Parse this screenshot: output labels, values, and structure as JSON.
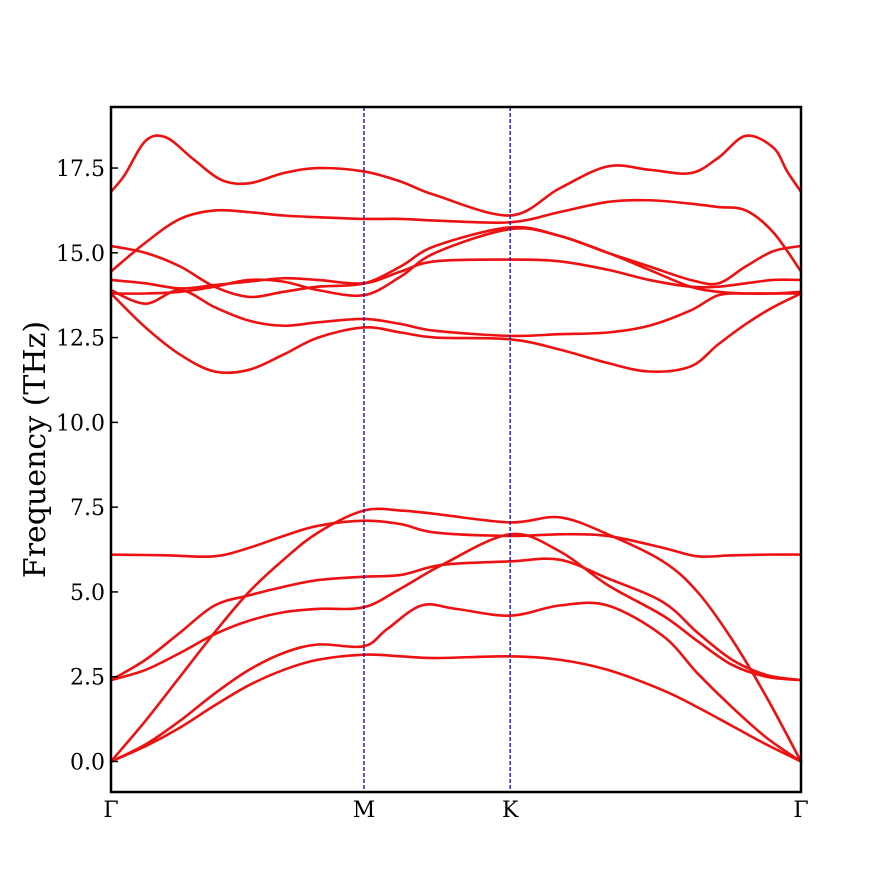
{
  "chart_data": {
    "type": "line",
    "title": "",
    "xlabel": "",
    "ylabel": "Frequency (THz)",
    "ylim": [
      -0.9,
      19.3
    ],
    "ytick_values": [
      0.0,
      2.5,
      5.0,
      7.5,
      10.0,
      12.5,
      15.0,
      17.5
    ],
    "ytick_labels": [
      "0.0",
      "2.5",
      "5.0",
      "7.5",
      "10.0",
      "12.5",
      "15.0",
      "17.5"
    ],
    "xlim": [
      0,
      1
    ],
    "high_symmetry_points": [
      {
        "label": "Γ",
        "x": 0.0
      },
      {
        "label": "M",
        "x": 0.3666
      },
      {
        "label": "K",
        "x": 0.5785
      },
      {
        "label": "Γ",
        "x": 1.0
      }
    ],
    "grid": false,
    "legend": false,
    "colors": {
      "band": "#ee1111",
      "kpath_line": "#0000dd",
      "frame": "#000000"
    },
    "series": [
      {
        "x": [
          0,
          0.05,
          0.1,
          0.15,
          0.2,
          0.25,
          0.3,
          0.3666,
          0.42,
          0.47,
          0.5785,
          0.65,
          0.72,
          0.8,
          0.85,
          0.9,
          0.95,
          1.0
        ],
        "y": [
          0.0,
          0.45,
          1.0,
          1.65,
          2.25,
          2.7,
          3.0,
          3.15,
          3.1,
          3.05,
          3.1,
          3.0,
          2.7,
          2.1,
          1.6,
          1.05,
          0.5,
          0.0
        ]
      },
      {
        "x": [
          0,
          0.05,
          0.1,
          0.15,
          0.2,
          0.25,
          0.3,
          0.3666,
          0.4,
          0.45,
          0.5,
          0.5785,
          0.65,
          0.72,
          0.8,
          0.85,
          0.9,
          0.95,
          1.0
        ],
        "y": [
          0.0,
          0.5,
          1.2,
          2.0,
          2.7,
          3.2,
          3.45,
          3.4,
          3.9,
          4.6,
          4.5,
          4.3,
          4.6,
          4.6,
          3.7,
          2.6,
          1.6,
          0.7,
          0.0
        ]
      },
      {
        "x": [
          0,
          0.05,
          0.1,
          0.15,
          0.2,
          0.25,
          0.3,
          0.3666,
          0.42,
          0.47,
          0.5785,
          0.65,
          0.72,
          0.8,
          0.85,
          0.9,
          0.95,
          1.0
        ],
        "y": [
          0.0,
          1.2,
          2.5,
          3.8,
          5.0,
          5.95,
          6.75,
          7.4,
          7.4,
          7.3,
          7.05,
          7.2,
          6.7,
          5.9,
          5.0,
          3.6,
          1.9,
          0.0
        ]
      },
      {
        "x": [
          0,
          0.05,
          0.1,
          0.15,
          0.2,
          0.25,
          0.3,
          0.3666,
          0.42,
          0.48,
          0.5785,
          0.65,
          0.72,
          0.8,
          0.85,
          0.9,
          0.95,
          1.0
        ],
        "y": [
          2.4,
          2.7,
          3.2,
          3.75,
          4.15,
          4.4,
          4.5,
          4.55,
          5.1,
          5.8,
          6.7,
          6.2,
          5.2,
          4.3,
          3.55,
          2.85,
          2.5,
          2.4
        ]
      },
      {
        "x": [
          0,
          0.05,
          0.1,
          0.15,
          0.2,
          0.25,
          0.3,
          0.3666,
          0.42,
          0.48,
          0.5785,
          0.65,
          0.72,
          0.8,
          0.85,
          0.9,
          0.95,
          1.0
        ],
        "y": [
          2.4,
          3.0,
          3.8,
          4.6,
          4.9,
          5.15,
          5.35,
          5.45,
          5.5,
          5.8,
          5.9,
          5.95,
          5.4,
          4.7,
          3.8,
          3.0,
          2.55,
          2.4
        ]
      },
      {
        "x": [
          0,
          0.08,
          0.15,
          0.2,
          0.25,
          0.3,
          0.3666,
          0.42,
          0.47,
          0.5785,
          0.65,
          0.72,
          0.8,
          0.85,
          0.9,
          0.95,
          1.0
        ],
        "y": [
          6.1,
          6.08,
          6.05,
          6.3,
          6.65,
          6.95,
          7.1,
          7.0,
          6.75,
          6.65,
          6.7,
          6.65,
          6.3,
          6.05,
          6.08,
          6.1,
          6.1
        ]
      },
      {
        "x": [
          0,
          0.05,
          0.1,
          0.15,
          0.2,
          0.25,
          0.3,
          0.3666,
          0.42,
          0.47,
          0.5785,
          0.65,
          0.72,
          0.78,
          0.84,
          0.88,
          0.92,
          0.96,
          1.0
        ],
        "y": [
          13.8,
          12.8,
          12.0,
          11.5,
          11.55,
          12.0,
          12.5,
          12.8,
          12.65,
          12.5,
          12.45,
          12.15,
          11.75,
          11.5,
          11.65,
          12.3,
          12.9,
          13.4,
          13.8
        ]
      },
      {
        "x": [
          0,
          0.05,
          0.1,
          0.15,
          0.2,
          0.25,
          0.3,
          0.3666,
          0.42,
          0.47,
          0.5785,
          0.65,
          0.72,
          0.78,
          0.84,
          0.88,
          0.92,
          0.96,
          1.0
        ],
        "y": [
          13.9,
          13.5,
          13.9,
          13.4,
          13.0,
          12.85,
          12.95,
          13.05,
          12.9,
          12.7,
          12.55,
          12.6,
          12.65,
          12.85,
          13.3,
          13.75,
          13.8,
          13.8,
          13.8
        ]
      },
      {
        "x": [
          0,
          0.05,
          0.1,
          0.15,
          0.2,
          0.25,
          0.3,
          0.3666,
          0.42,
          0.47,
          0.5785,
          0.65,
          0.72,
          0.78,
          0.84,
          0.88,
          0.92,
          0.96,
          1.0
        ],
        "y": [
          13.8,
          13.8,
          13.85,
          14.0,
          14.2,
          14.15,
          13.9,
          13.75,
          14.3,
          15.0,
          15.7,
          15.5,
          15.0,
          14.5,
          14.0,
          13.85,
          13.8,
          13.8,
          13.85
        ]
      },
      {
        "x": [
          0,
          0.05,
          0.1,
          0.15,
          0.2,
          0.25,
          0.3,
          0.3666,
          0.42,
          0.47,
          0.5785,
          0.65,
          0.72,
          0.78,
          0.84,
          0.88,
          0.92,
          0.96,
          1.0
        ],
        "y": [
          14.2,
          14.1,
          13.95,
          14.05,
          14.15,
          14.25,
          14.2,
          14.1,
          14.45,
          14.75,
          14.8,
          14.75,
          14.5,
          14.2,
          14.0,
          14.0,
          14.1,
          14.2,
          14.2
        ]
      },
      {
        "x": [
          0,
          0.05,
          0.1,
          0.15,
          0.2,
          0.25,
          0.3,
          0.3666,
          0.42,
          0.47,
          0.5785,
          0.65,
          0.72,
          0.78,
          0.84,
          0.88,
          0.92,
          0.96,
          1.0
        ],
        "y": [
          15.2,
          15.0,
          14.6,
          14.0,
          13.7,
          13.85,
          14.0,
          14.1,
          14.6,
          15.2,
          15.75,
          15.5,
          15.0,
          14.6,
          14.2,
          14.1,
          14.6,
          15.05,
          15.2
        ]
      },
      {
        "x": [
          0,
          0.05,
          0.1,
          0.15,
          0.2,
          0.25,
          0.3,
          0.3666,
          0.42,
          0.47,
          0.5785,
          0.65,
          0.72,
          0.78,
          0.84,
          0.88,
          0.92,
          0.96,
          1.0
        ],
        "y": [
          14.45,
          15.3,
          16.0,
          16.25,
          16.2,
          16.1,
          16.05,
          16.0,
          16.0,
          15.95,
          15.9,
          16.2,
          16.5,
          16.55,
          16.45,
          16.35,
          16.25,
          15.6,
          14.45
        ]
      },
      {
        "x": [
          0,
          0.02,
          0.05,
          0.08,
          0.12,
          0.16,
          0.2,
          0.25,
          0.3,
          0.3666,
          0.42,
          0.47,
          0.5785,
          0.65,
          0.72,
          0.78,
          0.84,
          0.88,
          0.92,
          0.96,
          0.98,
          1.0
        ],
        "y": [
          16.8,
          17.3,
          18.3,
          18.4,
          17.75,
          17.15,
          17.05,
          17.35,
          17.5,
          17.4,
          17.1,
          16.7,
          16.1,
          16.9,
          17.55,
          17.45,
          17.35,
          17.8,
          18.45,
          18.1,
          17.4,
          16.8
        ]
      }
    ]
  }
}
